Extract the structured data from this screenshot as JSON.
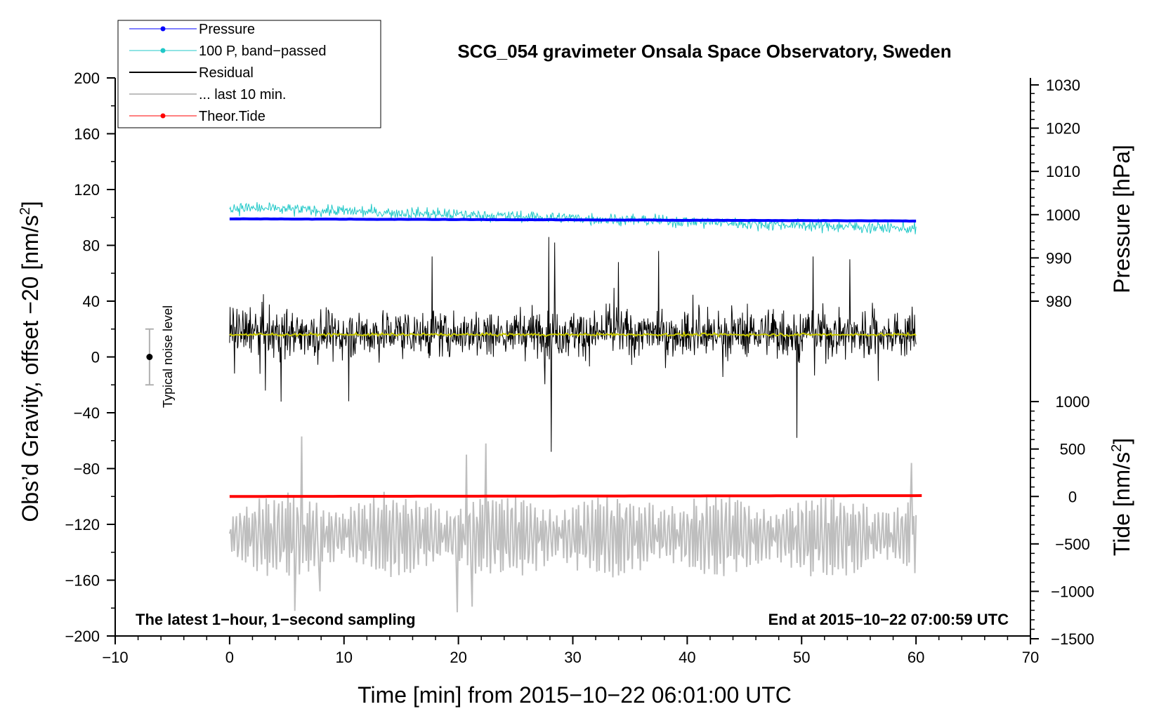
{
  "chart_data": {
    "type": "line",
    "title": "SCG_054 gravimeter Onsala Space Observatory, Sweden",
    "xlabel": "Time [min] from 2015−10−22 06:01:00 UTC",
    "ylabel_main": "Obs’d Gravity, offset −20 [nm/s",
    "ylabel_main_sup": "2",
    "ylabel_main_end": "]",
    "ylabel_pressure": "Pressure [hPa]",
    "ylabel_tide": "Tide [nm/s",
    "ylabel_tide_sup": "2",
    "ylabel_tide_end": "]",
    "xlim": [
      -10,
      70
    ],
    "ylim": [
      -200,
      200
    ],
    "x_ticks": [
      -10,
      0,
      10,
      20,
      30,
      40,
      50,
      60,
      70
    ],
    "x_tick_labels": [
      "−10",
      "0",
      "10",
      "20",
      "30",
      "40",
      "50",
      "60",
      "70"
    ],
    "y_ticks": [
      -200,
      -160,
      -120,
      -80,
      -40,
      0,
      40,
      80,
      120,
      160,
      200
    ],
    "y_tick_labels": [
      "−200",
      "−160",
      "−120",
      "−80",
      "−40",
      "0",
      "40",
      "80",
      "120",
      "160",
      "200"
    ],
    "pressure_axis": {
      "ticks": [
        980,
        990,
        1000,
        1010,
        1020,
        1030
      ],
      "tick_labels": [
        "980",
        "990",
        "1000",
        "1010",
        "1020",
        "1030"
      ],
      "gravity_at_980": 40,
      "gravity_per_10hPa": 31
    },
    "tide_axis": {
      "ticks": [
        -1500,
        -1000,
        -500,
        0,
        500,
        1000
      ],
      "tick_labels": [
        "−1500",
        "−1000",
        "−500",
        "0",
        "500",
        "1000"
      ],
      "gravity_at_0": -100,
      "gravity_per_500": 34
    },
    "legend": {
      "position": "top-left",
      "entries": [
        {
          "label": "Pressure",
          "color": "#0000ff",
          "marker": true
        },
        {
          "label": "100 P, band−passed",
          "color": "#20c8c8",
          "marker": true
        },
        {
          "label": "Residual",
          "color": "#000000",
          "marker": false
        },
        {
          "label": "... last 10 min.",
          "color": "#bebebe",
          "marker": false
        },
        {
          "label": "Theor.Tide",
          "color": "#ff0000",
          "marker": true
        }
      ]
    },
    "annotations": {
      "left": "The latest 1−hour, 1−second sampling",
      "right": "End at 2015−10−22 07:00:59 UTC"
    },
    "noise_indicator": {
      "label": "Typical noise level",
      "x": -7,
      "center": 0,
      "halfwidth": 20
    },
    "series": [
      {
        "name": "Pressure",
        "color": "#0000ff",
        "x_range": [
          0,
          60
        ],
        "start": 99,
        "end": 97.5,
        "amplitude": 0.4
      },
      {
        "name": "100 P, band-passed",
        "color": "#20c8c8",
        "x_range": [
          0,
          60
        ],
        "start": 107,
        "end": 92,
        "amplitude": 7
      },
      {
        "name": "Residual",
        "color": "#000000",
        "x_range": [
          0,
          60
        ],
        "center": 17,
        "amplitude": 22,
        "max": 86,
        "min": -68
      },
      {
        "name": "Residual smoothed",
        "color": "#c8c800",
        "x_range": [
          0,
          60
        ],
        "center": 16,
        "amplitude": 1.5
      },
      {
        "name": "... last 10 min.",
        "color": "#bebebe",
        "x_range": [
          0,
          60
        ],
        "center": -128,
        "amplitude": 28,
        "max": -57,
        "min": -183
      },
      {
        "name": "Theor.Tide",
        "color": "#ff0000",
        "x_range": [
          0,
          60.5
        ],
        "start": -100,
        "end": -99.4,
        "amplitude": 0
      }
    ],
    "colors": {
      "pressure": "#0000ff",
      "band": "#20c8c8",
      "residual": "#000000",
      "smooth": "#c8c800",
      "last10": "#bebebe",
      "tide": "#ff0000"
    }
  }
}
